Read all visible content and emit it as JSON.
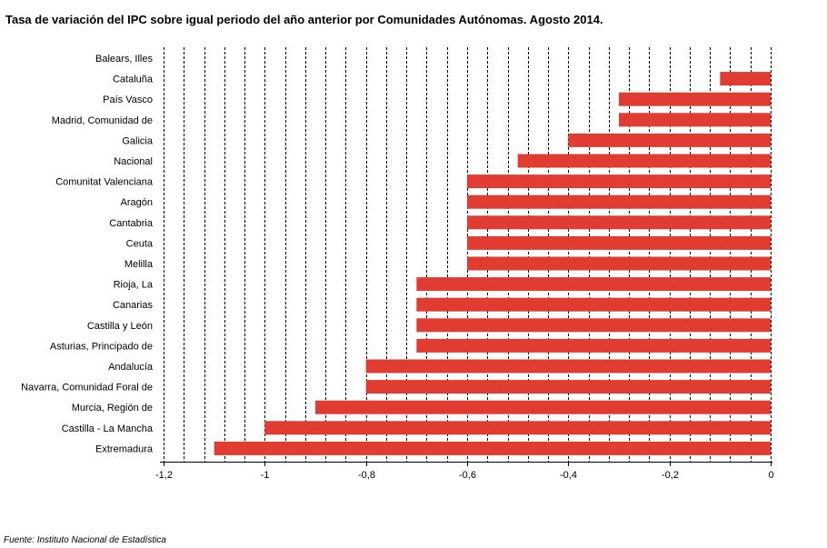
{
  "chart_data": {
    "type": "bar",
    "orientation": "horizontal",
    "title": "Tasa de variación del IPC sobre igual periodo del año anterior por Comunidades Autónomas.  Agosto 2014.",
    "categories": [
      "Balears, Illes",
      "Cataluña",
      "País Vasco",
      "Madrid, Comunidad de",
      "Galicia",
      "Nacional",
      "Comunitat Valenciana",
      "Aragón",
      "Cantabria",
      "Ceuta",
      "Melilla",
      "Rioja, La",
      "Canarias",
      "Castilla y León",
      "Asturias, Principado de",
      "Andalucía",
      "Navarra, Comunidad Foral de",
      "Murcia, Región de",
      "Castilla - La Mancha",
      "Extremadura"
    ],
    "values": [
      0,
      -0.1,
      -0.3,
      -0.3,
      -0.4,
      -0.5,
      -0.6,
      -0.6,
      -0.6,
      -0.6,
      -0.6,
      -0.7,
      -0.7,
      -0.7,
      -0.7,
      -0.8,
      -0.8,
      -0.9,
      -1.0,
      -1.1
    ],
    "xlim": [
      -1.2,
      0
    ],
    "x_ticks": [
      -1.2,
      -1,
      -0.8,
      -0.6,
      -0.4,
      -0.2,
      0
    ],
    "x_tick_labels": [
      "-1,2",
      "-1",
      "-0,8",
      "-0,6",
      "-0,4",
      "-0,2",
      "0"
    ],
    "grid": "vertical dashed",
    "bar_color": "#e03c31",
    "source": "Fuente: Instituto Nacional de Estadística"
  }
}
